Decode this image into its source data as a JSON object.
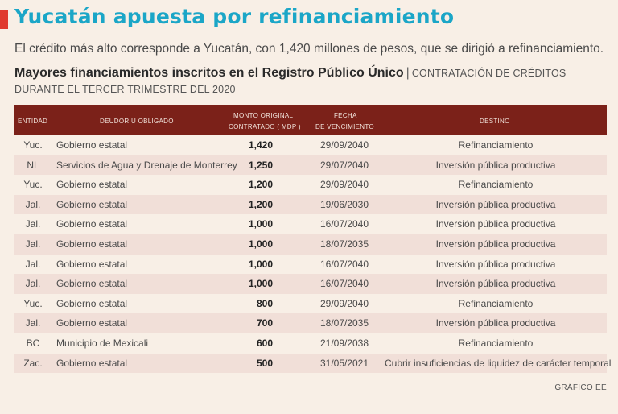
{
  "headline": "Yucatán apuesta por refinanciamiento",
  "lead": "El crédito más alto corresponde a Yucatán, con 1,420 millones de pesos, que se dirigió a refinanciamiento.",
  "subtitle": {
    "main": "Mayores financiamientos inscritos en el Registro Público Único",
    "separator": "|",
    "tail": "CONTRATACIÓN DE CRÉDITOS",
    "line2": "DURANTE EL TERCER TRIMESTRE DEL 2020"
  },
  "table": {
    "headers": {
      "entidad": "ENTIDAD",
      "deudor": "DEUDOR     U  OBLIGADO",
      "monto_line1": "MONTO     ORIGINAL",
      "monto_line2": "CONTRATADO     ( MDP )",
      "fecha_line1": "FECHA",
      "fecha_line2": "DE  VENCIMIENTO",
      "destino": "DESTINO"
    },
    "rows": [
      {
        "entidad": "Yuc.",
        "deudor": "Gobierno estatal",
        "monto": "1,420",
        "fecha": "29/09/2040",
        "destino": "Refinanciamiento"
      },
      {
        "entidad": "NL",
        "deudor": "Servicios de Agua y Drenaje de Monterrey",
        "monto": "1,250",
        "fecha": "29/07/2040",
        "destino": "Inversión pública productiva"
      },
      {
        "entidad": "Yuc.",
        "deudor": "Gobierno estatal",
        "monto": "1,200",
        "fecha": "29/09/2040",
        "destino": "Refinanciamiento"
      },
      {
        "entidad": "Jal.",
        "deudor": "Gobierno estatal",
        "monto": "1,200",
        "fecha": "19/06/2030",
        "destino": "Inversión pública productiva"
      },
      {
        "entidad": "Jal.",
        "deudor": "Gobierno estatal",
        "monto": "1,000",
        "fecha": "16/07/2040",
        "destino": "Inversión pública productiva"
      },
      {
        "entidad": "Jal.",
        "deudor": "Gobierno estatal",
        "monto": "1,000",
        "fecha": "18/07/2035",
        "destino": "Inversión pública productiva"
      },
      {
        "entidad": "Jal.",
        "deudor": "Gobierno estatal",
        "monto": "1,000",
        "fecha": "16/07/2040",
        "destino": "Inversión pública productiva"
      },
      {
        "entidad": "Jal.",
        "deudor": "Gobierno estatal",
        "monto": "1,000",
        "fecha": "16/07/2040",
        "destino": "Inversión pública productiva"
      },
      {
        "entidad": "Yuc.",
        "deudor": "Gobierno estatal",
        "monto": "800",
        "fecha": "29/09/2040",
        "destino": "Refinanciamiento"
      },
      {
        "entidad": "Jal.",
        "deudor": "Gobierno estatal",
        "monto": "700",
        "fecha": "18/07/2035",
        "destino": "Inversión pública productiva"
      },
      {
        "entidad": "BC",
        "deudor": "Municipio de Mexicali",
        "monto": "600",
        "fecha": "21/09/2038",
        "destino": "Refinanciamiento"
      },
      {
        "entidad": "Zac.",
        "deudor": "Gobierno estatal",
        "monto": "500",
        "fecha": "31/05/2021",
        "destino": "Cubrir insuficiencias de liquidez de carácter temporal"
      }
    ]
  },
  "credit": "GRÁFICO EE",
  "colors": {
    "accent_red": "#e03a2f",
    "headline_blue": "#1ba6c7",
    "header_maroon": "#7b2119",
    "stripe_pink": "#f1dfd8",
    "background": "#f8efe6"
  }
}
